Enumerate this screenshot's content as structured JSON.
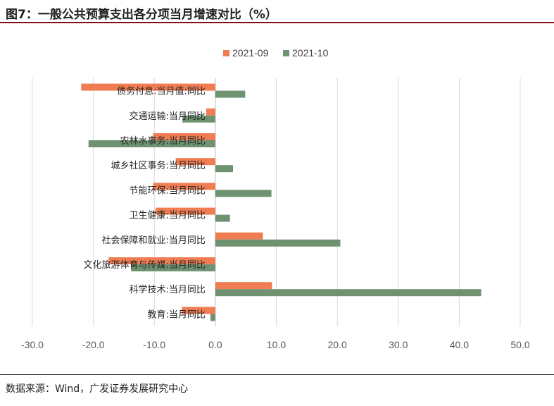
{
  "figure": {
    "title": "图7：一般公共预算支出各分项当月增速对比（%）",
    "source": "数据来源：Wind，广发证券发展研究中心"
  },
  "colors": {
    "series_2021_09": "#f07c52",
    "series_2021_10": "#6f9271",
    "gridline": "#d9d9d9",
    "title_rule": "#7f0f14"
  },
  "chart_data": {
    "type": "bar",
    "orientation": "horizontal",
    "categories": [
      "债务付息:当月值:同比",
      "交通运输:当月同比",
      "农林水事务:当月同比",
      "城乡社区事务:当月同比",
      "节能环保:当月同比",
      "卫生健康:当月同比",
      "社会保障和就业:当月同比",
      "文化旅游体育与传媒:当月同比",
      "科学技术:当月同比",
      "教育:当月同比"
    ],
    "series": [
      {
        "name": "2021-09",
        "values": [
          -22.0,
          -1.5,
          -10.2,
          -6.5,
          -10.2,
          -9.8,
          7.8,
          -17.5,
          9.3,
          -5.5
        ]
      },
      {
        "name": "2021-10",
        "values": [
          4.9,
          -5.4,
          -20.8,
          2.9,
          9.2,
          2.4,
          20.5,
          -13.8,
          43.6,
          -0.8
        ]
      }
    ],
    "xlim": [
      -30,
      50
    ],
    "xticks": [
      "-30.0",
      "-20.0",
      "-10.0",
      "0.0",
      "10.0",
      "20.0",
      "30.0",
      "40.0",
      "50.0"
    ],
    "xtick_values": [
      -30,
      -20,
      -10,
      0,
      10,
      20,
      30,
      40,
      50
    ],
    "grid": true,
    "legend": "top-center",
    "xlabel": "",
    "ylabel": ""
  }
}
